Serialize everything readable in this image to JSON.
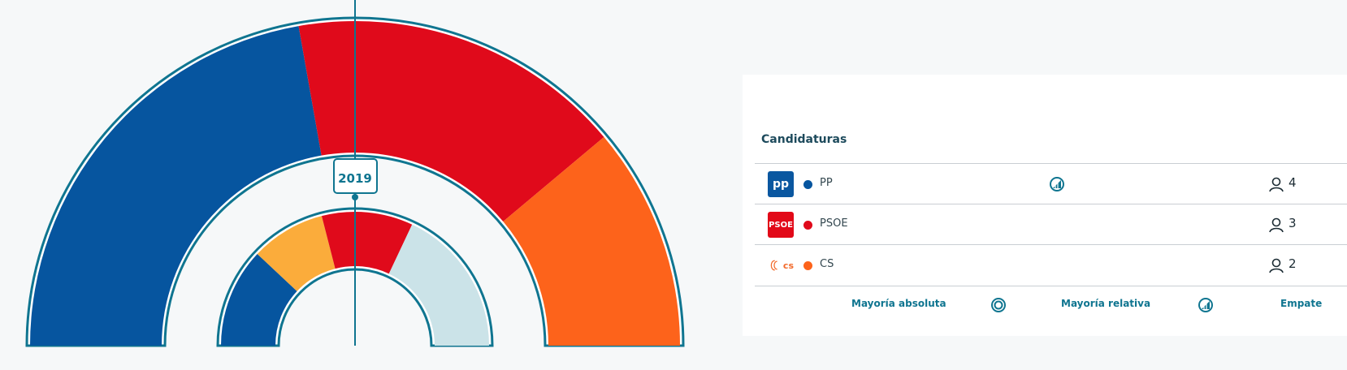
{
  "chart_data": {
    "type": "parliament",
    "year_label": "2019",
    "outer_ring": {
      "series": [
        {
          "name": "PP",
          "value": 4,
          "color": "#06559f"
        },
        {
          "name": "PSOE",
          "value": 3,
          "color": "#e00a1b"
        },
        {
          "name": "CS",
          "value": 2,
          "color": "#fd631b"
        }
      ]
    },
    "inner_ring": {
      "series": [
        {
          "name": "",
          "value": 24,
          "color": "#06559f"
        },
        {
          "name": "",
          "value": 18,
          "color": "#fbac3b"
        },
        {
          "name": "",
          "value": 22,
          "color": "#e00a1b"
        },
        {
          "name": "",
          "value": 36,
          "color": "#cbe3e8"
        }
      ]
    },
    "majority_line": true
  },
  "table": {
    "header": "Candidaturas",
    "rows": [
      {
        "logo_text": "pp",
        "party": "PP",
        "color": "#06559f",
        "status_icon": "relative-majority-icon",
        "seats": "4"
      },
      {
        "logo_text": "PSOE",
        "party": "PSOE",
        "color": "#e00a1b",
        "status_icon": "",
        "seats": "3"
      },
      {
        "logo_text": "cs",
        "party": "CS",
        "color": "#fd631b",
        "status_icon": "",
        "seats": "2"
      }
    ]
  },
  "legend": {
    "absolute": "Mayoría absoluta",
    "relative": "Mayoría relativa",
    "tie": "Empate"
  },
  "colors": {
    "accent": "#0f7590"
  }
}
